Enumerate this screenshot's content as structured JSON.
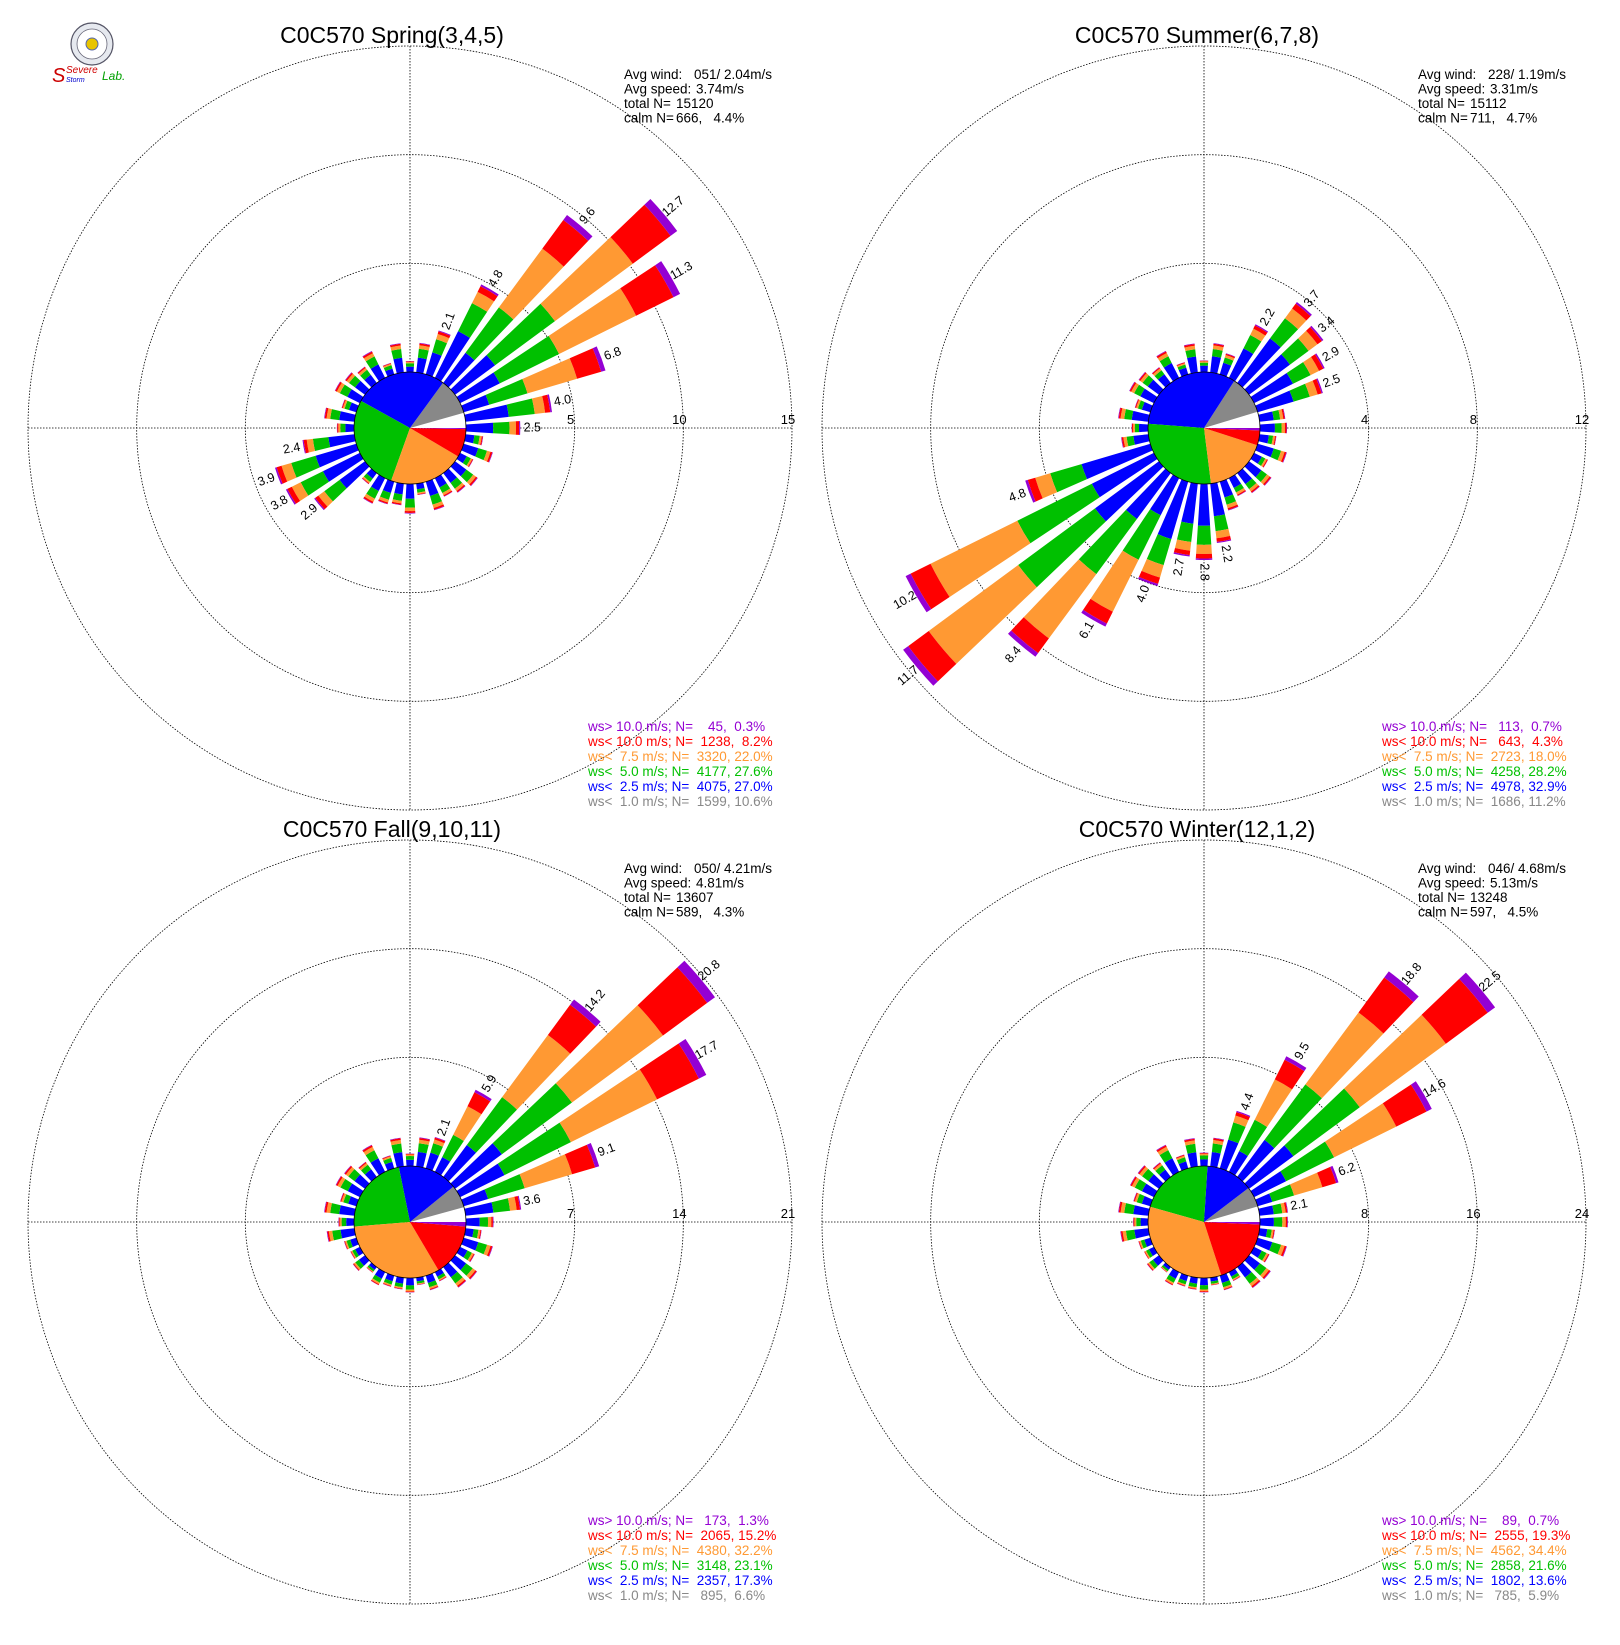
{
  "chart_data": [
    {
      "type": "windrose",
      "title": "C0C570 Spring(3,4,5)",
      "stats": [
        {
          "label": "Avg wind:",
          "value": "051/ 2.04m/s"
        },
        {
          "label": "Avg speed:",
          "value": "3.74m/s"
        },
        {
          "label": "total N=",
          "value": "15120"
        },
        {
          "label": "calm N=",
          "value": "666,   4.4%"
        }
      ],
      "rings": [
        5,
        10,
        15
      ],
      "ring_labels": [
        "5",
        "10",
        "15"
      ],
      "labeled_bars": [
        {
          "dir": 20,
          "value": 2.1
        },
        {
          "dir": 30,
          "value": 4.8
        },
        {
          "dir": 40,
          "value": 9.6
        },
        {
          "dir": 50,
          "value": 12.7
        },
        {
          "dir": 60,
          "value": 11.3
        },
        {
          "dir": 70,
          "value": 6.8
        },
        {
          "dir": 80,
          "value": 4.0
        },
        {
          "dir": 90,
          "value": 2.5
        },
        {
          "dir": 230,
          "value": 2.9
        },
        {
          "dir": 240,
          "value": 3.8
        },
        {
          "dir": 250,
          "value": 3.9
        },
        {
          "dir": 260,
          "value": 2.4
        }
      ],
      "legend": [
        {
          "text": "ws> 10.0 m/s; N=    45,  0.3%",
          "color": "#9400d3"
        },
        {
          "text": "ws< 10.0 m/s; N=  1238,  8.2%",
          "color": "#ff0000"
        },
        {
          "text": "ws<  7.5 m/s; N=  3320, 22.0%",
          "color": "#ff9933"
        },
        {
          "text": "ws<  5.0 m/s; N=  4177, 27.6%",
          "color": "#00c000"
        },
        {
          "text": "ws<  2.5 m/s; N=  4075, 27.0%",
          "color": "#0000ff"
        },
        {
          "text": "ws<  1.0 m/s; N=  1599, 10.6%",
          "color": "#888888"
        }
      ]
    },
    {
      "type": "windrose",
      "title": "C0C570 Summer(6,7,8)",
      "stats": [
        {
          "label": "Avg wind:",
          "value": "228/ 1.19m/s"
        },
        {
          "label": "Avg speed:",
          "value": "3.31m/s"
        },
        {
          "label": "total N=",
          "value": "15112"
        },
        {
          "label": "calm N=",
          "value": "711,   4.7%"
        }
      ],
      "rings": [
        4,
        8,
        12
      ],
      "ring_labels": [
        "4",
        "8",
        "12"
      ],
      "labeled_bars": [
        {
          "dir": 30,
          "value": 2.2
        },
        {
          "dir": 40,
          "value": 3.7
        },
        {
          "dir": 50,
          "value": 3.4
        },
        {
          "dir": 60,
          "value": 2.9
        },
        {
          "dir": 70,
          "value": 2.5
        },
        {
          "dir": 170,
          "value": 2.2
        },
        {
          "dir": 180,
          "value": 2.8
        },
        {
          "dir": 190,
          "value": 2.7
        },
        {
          "dir": 200,
          "value": 4.0
        },
        {
          "dir": 210,
          "value": 6.1
        },
        {
          "dir": 220,
          "value": 8.4
        },
        {
          "dir": 230,
          "value": 11.7
        },
        {
          "dir": 240,
          "value": 10.2
        },
        {
          "dir": 250,
          "value": 4.8
        }
      ],
      "legend": [
        {
          "text": "ws> 10.0 m/s; N=   113,  0.7%",
          "color": "#9400d3"
        },
        {
          "text": "ws< 10.0 m/s; N=   643,  4.3%",
          "color": "#ff0000"
        },
        {
          "text": "ws<  7.5 m/s; N=  2723, 18.0%",
          "color": "#ff9933"
        },
        {
          "text": "ws<  5.0 m/s; N=  4258, 28.2%",
          "color": "#00c000"
        },
        {
          "text": "ws<  2.5 m/s; N=  4978, 32.9%",
          "color": "#0000ff"
        },
        {
          "text": "ws<  1.0 m/s; N=  1686, 11.2%",
          "color": "#888888"
        }
      ]
    },
    {
      "type": "windrose",
      "title": "C0C570 Fall(9,10,11)",
      "stats": [
        {
          "label": "Avg wind:",
          "value": "050/ 4.21m/s"
        },
        {
          "label": "Avg speed:",
          "value": "4.81m/s"
        },
        {
          "label": "total N=",
          "value": "13607"
        },
        {
          "label": "calm N=",
          "value": "589,   4.3%"
        }
      ],
      "rings": [
        7,
        14,
        21
      ],
      "ring_labels": [
        "7",
        "14",
        "21"
      ],
      "labeled_bars": [
        {
          "dir": 20,
          "value": 2.1
        },
        {
          "dir": 30,
          "value": 5.9
        },
        {
          "dir": 40,
          "value": 14.2
        },
        {
          "dir": 50,
          "value": 20.8
        },
        {
          "dir": 60,
          "value": 17.7
        },
        {
          "dir": 70,
          "value": 9.1
        },
        {
          "dir": 80,
          "value": 3.6
        }
      ],
      "legend": [
        {
          "text": "ws> 10.0 m/s; N=   173,  1.3%",
          "color": "#9400d3"
        },
        {
          "text": "ws< 10.0 m/s; N=  2065, 15.2%",
          "color": "#ff0000"
        },
        {
          "text": "ws<  7.5 m/s; N=  4380, 32.2%",
          "color": "#ff9933"
        },
        {
          "text": "ws<  5.0 m/s; N=  3148, 23.1%",
          "color": "#00c000"
        },
        {
          "text": "ws<  2.5 m/s; N=  2357, 17.3%",
          "color": "#0000ff"
        },
        {
          "text": "ws<  1.0 m/s; N=   895,  6.6%",
          "color": "#888888"
        }
      ]
    },
    {
      "type": "windrose",
      "title": "C0C570 Winter(12,1,2)",
      "stats": [
        {
          "label": "Avg wind:",
          "value": "046/ 4.68m/s"
        },
        {
          "label": "Avg speed:",
          "value": "5.13m/s"
        },
        {
          "label": "total N=",
          "value": "13248"
        },
        {
          "label": "calm N=",
          "value": "597,   4.5%"
        }
      ],
      "rings": [
        8,
        16,
        24
      ],
      "ring_labels": [
        "8",
        "16",
        "24"
      ],
      "labeled_bars": [
        {
          "dir": 20,
          "value": 4.4
        },
        {
          "dir": 30,
          "value": 9.5
        },
        {
          "dir": 40,
          "value": 18.8
        },
        {
          "dir": 50,
          "value": 22.5
        },
        {
          "dir": 60,
          "value": 14.6
        },
        {
          "dir": 70,
          "value": 6.2
        },
        {
          "dir": 80,
          "value": 2.1
        }
      ],
      "legend": [
        {
          "text": "ws> 10.0 m/s; N=    89,  0.7%",
          "color": "#9400d3"
        },
        {
          "text": "ws< 10.0 m/s; N=  2555, 19.3%",
          "color": "#ff0000"
        },
        {
          "text": "ws<  7.5 m/s; N=  4562, 34.4%",
          "color": "#ff9933"
        },
        {
          "text": "ws<  5.0 m/s; N=  2858, 21.6%",
          "color": "#00c000"
        },
        {
          "text": "ws<  2.5 m/s; N=  1802, 13.6%",
          "color": "#0000ff"
        },
        {
          "text": "ws<  1.0 m/s; N=   785,  5.9%",
          "color": "#888888"
        }
      ]
    }
  ],
  "logo": {
    "line1": "Severe",
    "line2": "Storm",
    "line3": "Lab."
  },
  "colors": {
    "gt10": "#9400d3",
    "lt10": "#ff0000",
    "lt75": "#ff9933",
    "lt5": "#00c000",
    "lt25": "#0000ff",
    "lt1": "#888888",
    "calm": "#ffffff"
  }
}
